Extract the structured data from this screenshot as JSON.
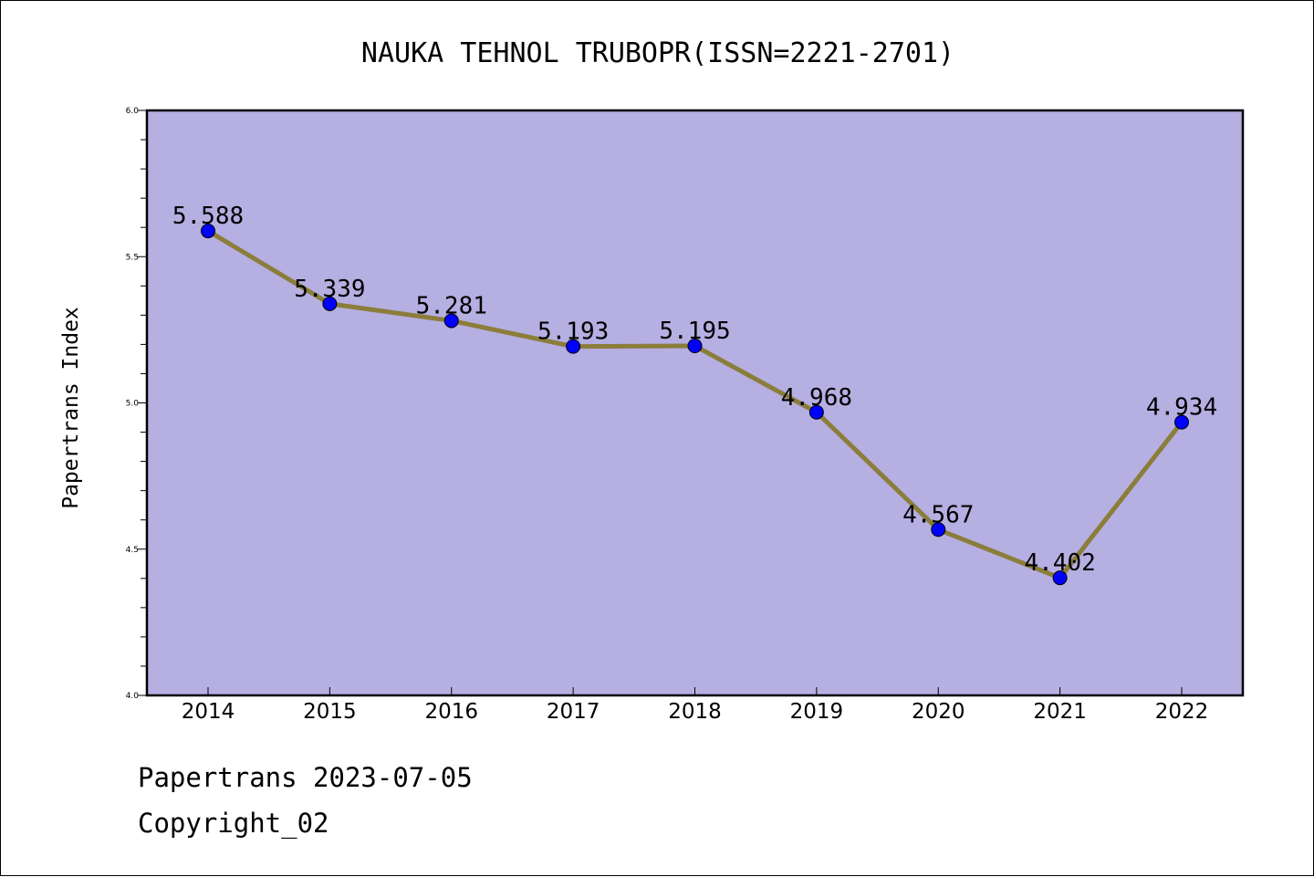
{
  "chart_data": {
    "type": "line",
    "title": "NAUKA TEHNOL TRUBOPR(ISSN=2221-2701)",
    "xlabel": "",
    "ylabel": "Papertrans Index",
    "x": [
      "2014",
      "2015",
      "2016",
      "2017",
      "2018",
      "2019",
      "2020",
      "2021",
      "2022"
    ],
    "series": [
      {
        "values": [
          5.588,
          5.339,
          5.281,
          5.193,
          5.195,
          4.968,
          4.567,
          4.402,
          4.934
        ],
        "labels": [
          "5.588",
          "5.339",
          "5.281",
          "5.193",
          "5.195",
          "4.968",
          "4.567",
          "4.402",
          "4.934"
        ]
      }
    ],
    "ylim": [
      4.0,
      6.0
    ],
    "yticks": [
      "4.0",
      "4.5",
      "5.0",
      "5.5",
      "6.0"
    ],
    "grid": false,
    "colors": {
      "plot_background": "#b5afe2",
      "line": "#8b7d3a",
      "marker": "#0000ff"
    }
  },
  "footer": {
    "source": "Papertrans 2023-07-05",
    "copyright": "Copyright_02"
  }
}
